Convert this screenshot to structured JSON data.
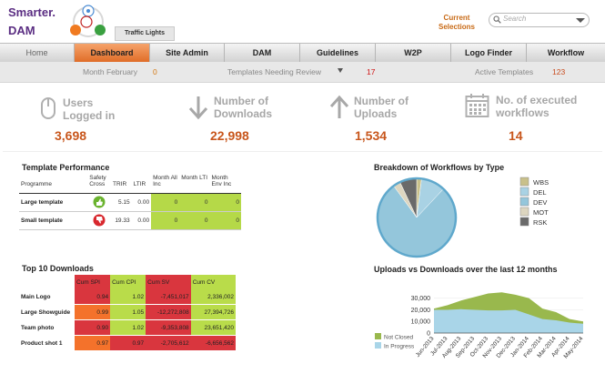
{
  "brand": {
    "line1": "Smarter.",
    "line2": "DAM"
  },
  "header": {
    "traffic_tab": "Traffic Lights",
    "current_selections": [
      "Current",
      "Selections"
    ],
    "search_placeholder": "Search"
  },
  "nav": {
    "items": [
      {
        "label": "Home"
      },
      {
        "label": "Dashboard"
      },
      {
        "label": "Site Admin"
      },
      {
        "label": "DAM"
      },
      {
        "label": "Guidelines"
      },
      {
        "label": "W2P"
      },
      {
        "label": "Logo Finder"
      },
      {
        "label": "Workflow"
      }
    ],
    "active": "Dashboard"
  },
  "subbar": {
    "month_label": "Month February",
    "month_value": "0",
    "review_label": "Templates Needing Review",
    "review_value": "17",
    "active_label": "Active Templates",
    "active_value": "123"
  },
  "kpis": [
    {
      "label": [
        "Users",
        "Logged in"
      ],
      "value": "3,698",
      "icon": "mouse-icon"
    },
    {
      "label": [
        "Number of",
        "Downloads"
      ],
      "value": "22,998",
      "icon": "arrow-down-icon"
    },
    {
      "label": [
        "Number of",
        "Uploads"
      ],
      "value": "1,534",
      "icon": "arrow-up-icon"
    },
    {
      "label": [
        "No. of executed",
        "workflows"
      ],
      "value": "14",
      "icon": "calendar-icon"
    }
  ],
  "template_performance": {
    "title": "Template Performance",
    "headers": [
      "Programme",
      "Safety Cross",
      "TRIR",
      "LTIR",
      "Month All Inc",
      "Month LTI",
      "Month Env Inc"
    ],
    "rows": [
      {
        "name": "Large template",
        "status": "thumbs-up-icon",
        "trir": "5.15",
        "ltir": "0.00",
        "all_inc": "0",
        "lti": "0",
        "env_inc": "0"
      },
      {
        "name": "Small template",
        "status": "thumbs-down-icon",
        "trir": "19.33",
        "ltir": "0.00",
        "all_inc": "0",
        "lti": "0",
        "env_inc": "0"
      }
    ],
    "colors": {
      "green": "#b5d948"
    }
  },
  "top10": {
    "title": "Top 10 Downloads",
    "headers": [
      "",
      "Cum SPI",
      "Cum CPI",
      "Cum SV",
      "Cum CV"
    ],
    "rows": [
      {
        "name": "Main Logo",
        "cells": [
          [
            "0.94",
            "red"
          ],
          [
            "1.02",
            "green"
          ],
          [
            "-7,451,017",
            "red"
          ],
          [
            "2,336,002",
            "green"
          ]
        ]
      },
      {
        "name": "Large Showguide",
        "cells": [
          [
            "0.99",
            "orange"
          ],
          [
            "1.05",
            "green"
          ],
          [
            "-12,272,808",
            "red"
          ],
          [
            "27,394,726",
            "green"
          ]
        ]
      },
      {
        "name": "Team photo",
        "cells": [
          [
            "0.90",
            "red"
          ],
          [
            "1.02",
            "green"
          ],
          [
            "-9,353,808",
            "red"
          ],
          [
            "23,651,420",
            "green"
          ]
        ]
      },
      {
        "name": "Product shot 1",
        "cells": [
          [
            "0.97",
            "orange"
          ],
          [
            "0.97",
            "red"
          ],
          [
            "-2,705,612",
            "red"
          ],
          [
            "-6,656,562",
            "red"
          ]
        ]
      }
    ]
  },
  "chart_data": [
    {
      "type": "pie",
      "title": "Breakdown of Workflows by Type",
      "categories": [
        "WBS",
        "DEL",
        "DEV",
        "MOT",
        "RSK"
      ],
      "values": [
        2,
        10,
        78,
        3,
        7
      ],
      "colors": [
        "#c9c08a",
        "#a9d2e4",
        "#94c6db",
        "#ddd6c0",
        "#6a6a6a"
      ]
    },
    {
      "type": "area",
      "title": "Uploads vs Downloads over the last 12 months",
      "categories": [
        "Jun-2013",
        "Jul-2013",
        "Aug-2013",
        "Sep-2013",
        "Oct-2013",
        "Nov-2013",
        "Dec-2013",
        "Jan-2014",
        "Feb-2014",
        "Mar-2014",
        "Apr-2014",
        "May-2014"
      ],
      "series": [
        {
          "name": "Not Closed",
          "values": [
            21000,
            24000,
            28000,
            31000,
            34000,
            35000,
            33000,
            30000,
            21000,
            18000,
            12000,
            10000
          ],
          "color": "#99b84d"
        },
        {
          "name": "In Progress",
          "values": [
            20000,
            20000,
            20500,
            20000,
            19500,
            19500,
            20000,
            16000,
            12000,
            11000,
            9000,
            8000
          ],
          "color": "#a9d5e8"
        }
      ],
      "yticks": [
        "30,000",
        "20,000",
        "10,000",
        "0"
      ],
      "ylim": [
        0,
        36000
      ]
    }
  ]
}
